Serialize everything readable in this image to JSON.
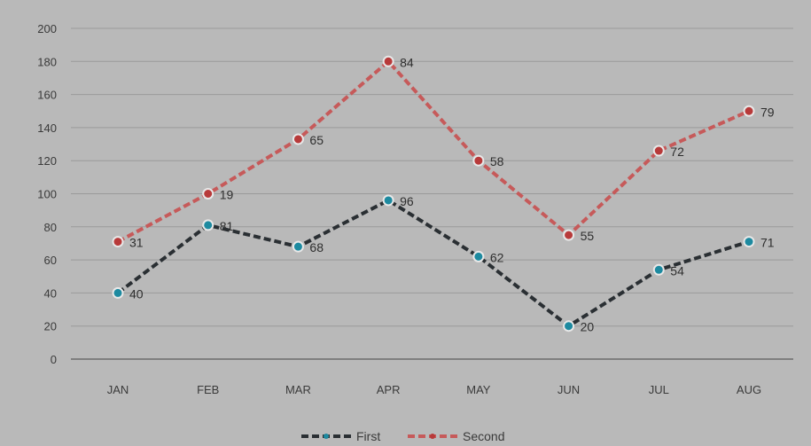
{
  "chart_data": {
    "type": "line",
    "categories": [
      "JAN",
      "FEB",
      "MAR",
      "APR",
      "MAY",
      "JUN",
      "JUL",
      "AUG"
    ],
    "ylim": [
      0,
      200
    ],
    "yticks": [
      0,
      20,
      40,
      60,
      80,
      100,
      120,
      140,
      160,
      180,
      200
    ],
    "grid": true,
    "legend_position": "bottom",
    "series": [
      {
        "name": "First",
        "color": "#2a2f33",
        "marker_color": "#1d8aa0",
        "values": [
          40,
          81,
          68,
          96,
          62,
          20,
          54,
          71
        ],
        "labels": [
          "40",
          "81",
          "68",
          "96",
          "62",
          "20",
          "54",
          "71"
        ]
      },
      {
        "name": "Second",
        "color": "#c65a5a",
        "marker_color": "#b83a3a",
        "values": [
          71,
          100,
          133,
          180,
          120,
          75,
          126,
          150
        ],
        "labels": [
          "31",
          "19",
          "65",
          "84",
          "58",
          "55",
          "72",
          "79"
        ]
      }
    ]
  }
}
